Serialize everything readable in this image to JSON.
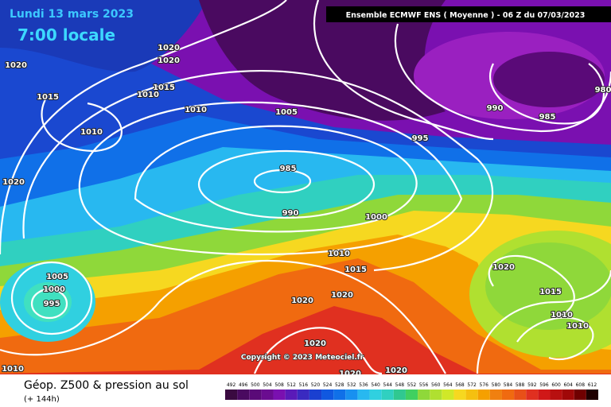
{
  "header": {
    "date": "Lundi 13 mars 2023",
    "time": "7:00 locale",
    "model": "Ensemble ECMWF ENS  ( Moyenne )  -  06 Z du 07/03/2023"
  },
  "map": {
    "isobar_labels": [
      "1020",
      "1020",
      "1020",
      "1015",
      "1010",
      "1015",
      "1010",
      "1010",
      "1005",
      "1020",
      "985",
      "990",
      "995",
      "990",
      "985",
      "980",
      "1000",
      "1010",
      "1015",
      "1020",
      "1020",
      "1005",
      "1000",
      "995",
      "1020",
      "1020",
      "1020",
      "1020",
      "1015",
      "1010",
      "1010",
      "1010"
    ],
    "copyright": "Copyright © 2023 Meteociel.fr"
  },
  "footer": {
    "title": "Géop. Z500 & pression au sol",
    "lead": "(+ 144h)"
  },
  "scale": {
    "ticks": [
      492,
      496,
      500,
      504,
      508,
      512,
      516,
      520,
      524,
      528,
      532,
      536,
      540,
      544,
      548,
      552,
      556,
      560,
      564,
      568,
      572,
      576,
      580,
      584,
      588,
      592,
      596,
      600,
      604,
      608,
      612
    ],
    "colors": [
      "#3a0a40",
      "#4a0a60",
      "#5a0a78",
      "#6a0c90",
      "#7a10b0",
      "#5a1ab8",
      "#3a2ac0",
      "#1a40d0",
      "#1058e0",
      "#1070e8",
      "#1890f0",
      "#28b8f0",
      "#30d0e0",
      "#30d0c0",
      "#30c890",
      "#40d060",
      "#8fd83a",
      "#b0e030",
      "#d0e828",
      "#f6d820",
      "#f5c010",
      "#f5a000",
      "#f08010",
      "#f06a10",
      "#e85018",
      "#e03020",
      "#d01818",
      "#b81010",
      "#a00808",
      "#700000",
      "#200000"
    ]
  }
}
